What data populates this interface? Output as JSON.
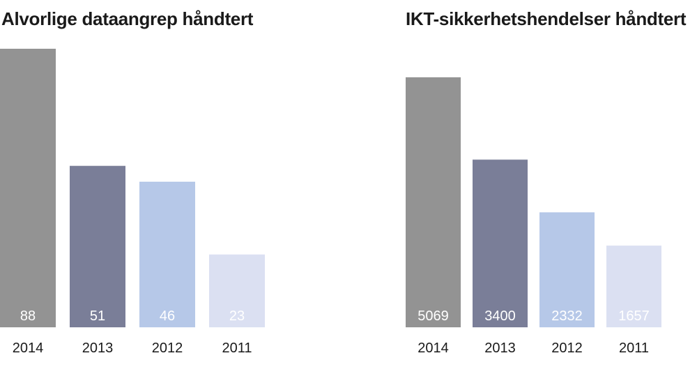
{
  "chart_data": [
    {
      "type": "bar",
      "title": "Alvorlige dataangrep håndtert",
      "categories": [
        "2014",
        "2013",
        "2012",
        "2011"
      ],
      "values": [
        88,
        51,
        46,
        23
      ],
      "colors": [
        "#939393",
        "#7a7e98",
        "#b6c8e8",
        "#dbe0f2"
      ],
      "value_label_color": "#ffffff",
      "ylim": [
        0,
        88
      ],
      "grid": false,
      "legend": "none"
    },
    {
      "type": "bar",
      "title": "IKT-sikkerhetshendelser håndtert",
      "categories": [
        "2014",
        "2013",
        "2012",
        "2011"
      ],
      "values": [
        5069,
        3400,
        2332,
        1657
      ],
      "colors": [
        "#939393",
        "#7a7e98",
        "#b6c8e8",
        "#dbe0f2"
      ],
      "value_label_color": "#ffffff",
      "ylim": [
        0,
        5380
      ],
      "grid": false,
      "legend": "none"
    }
  ]
}
